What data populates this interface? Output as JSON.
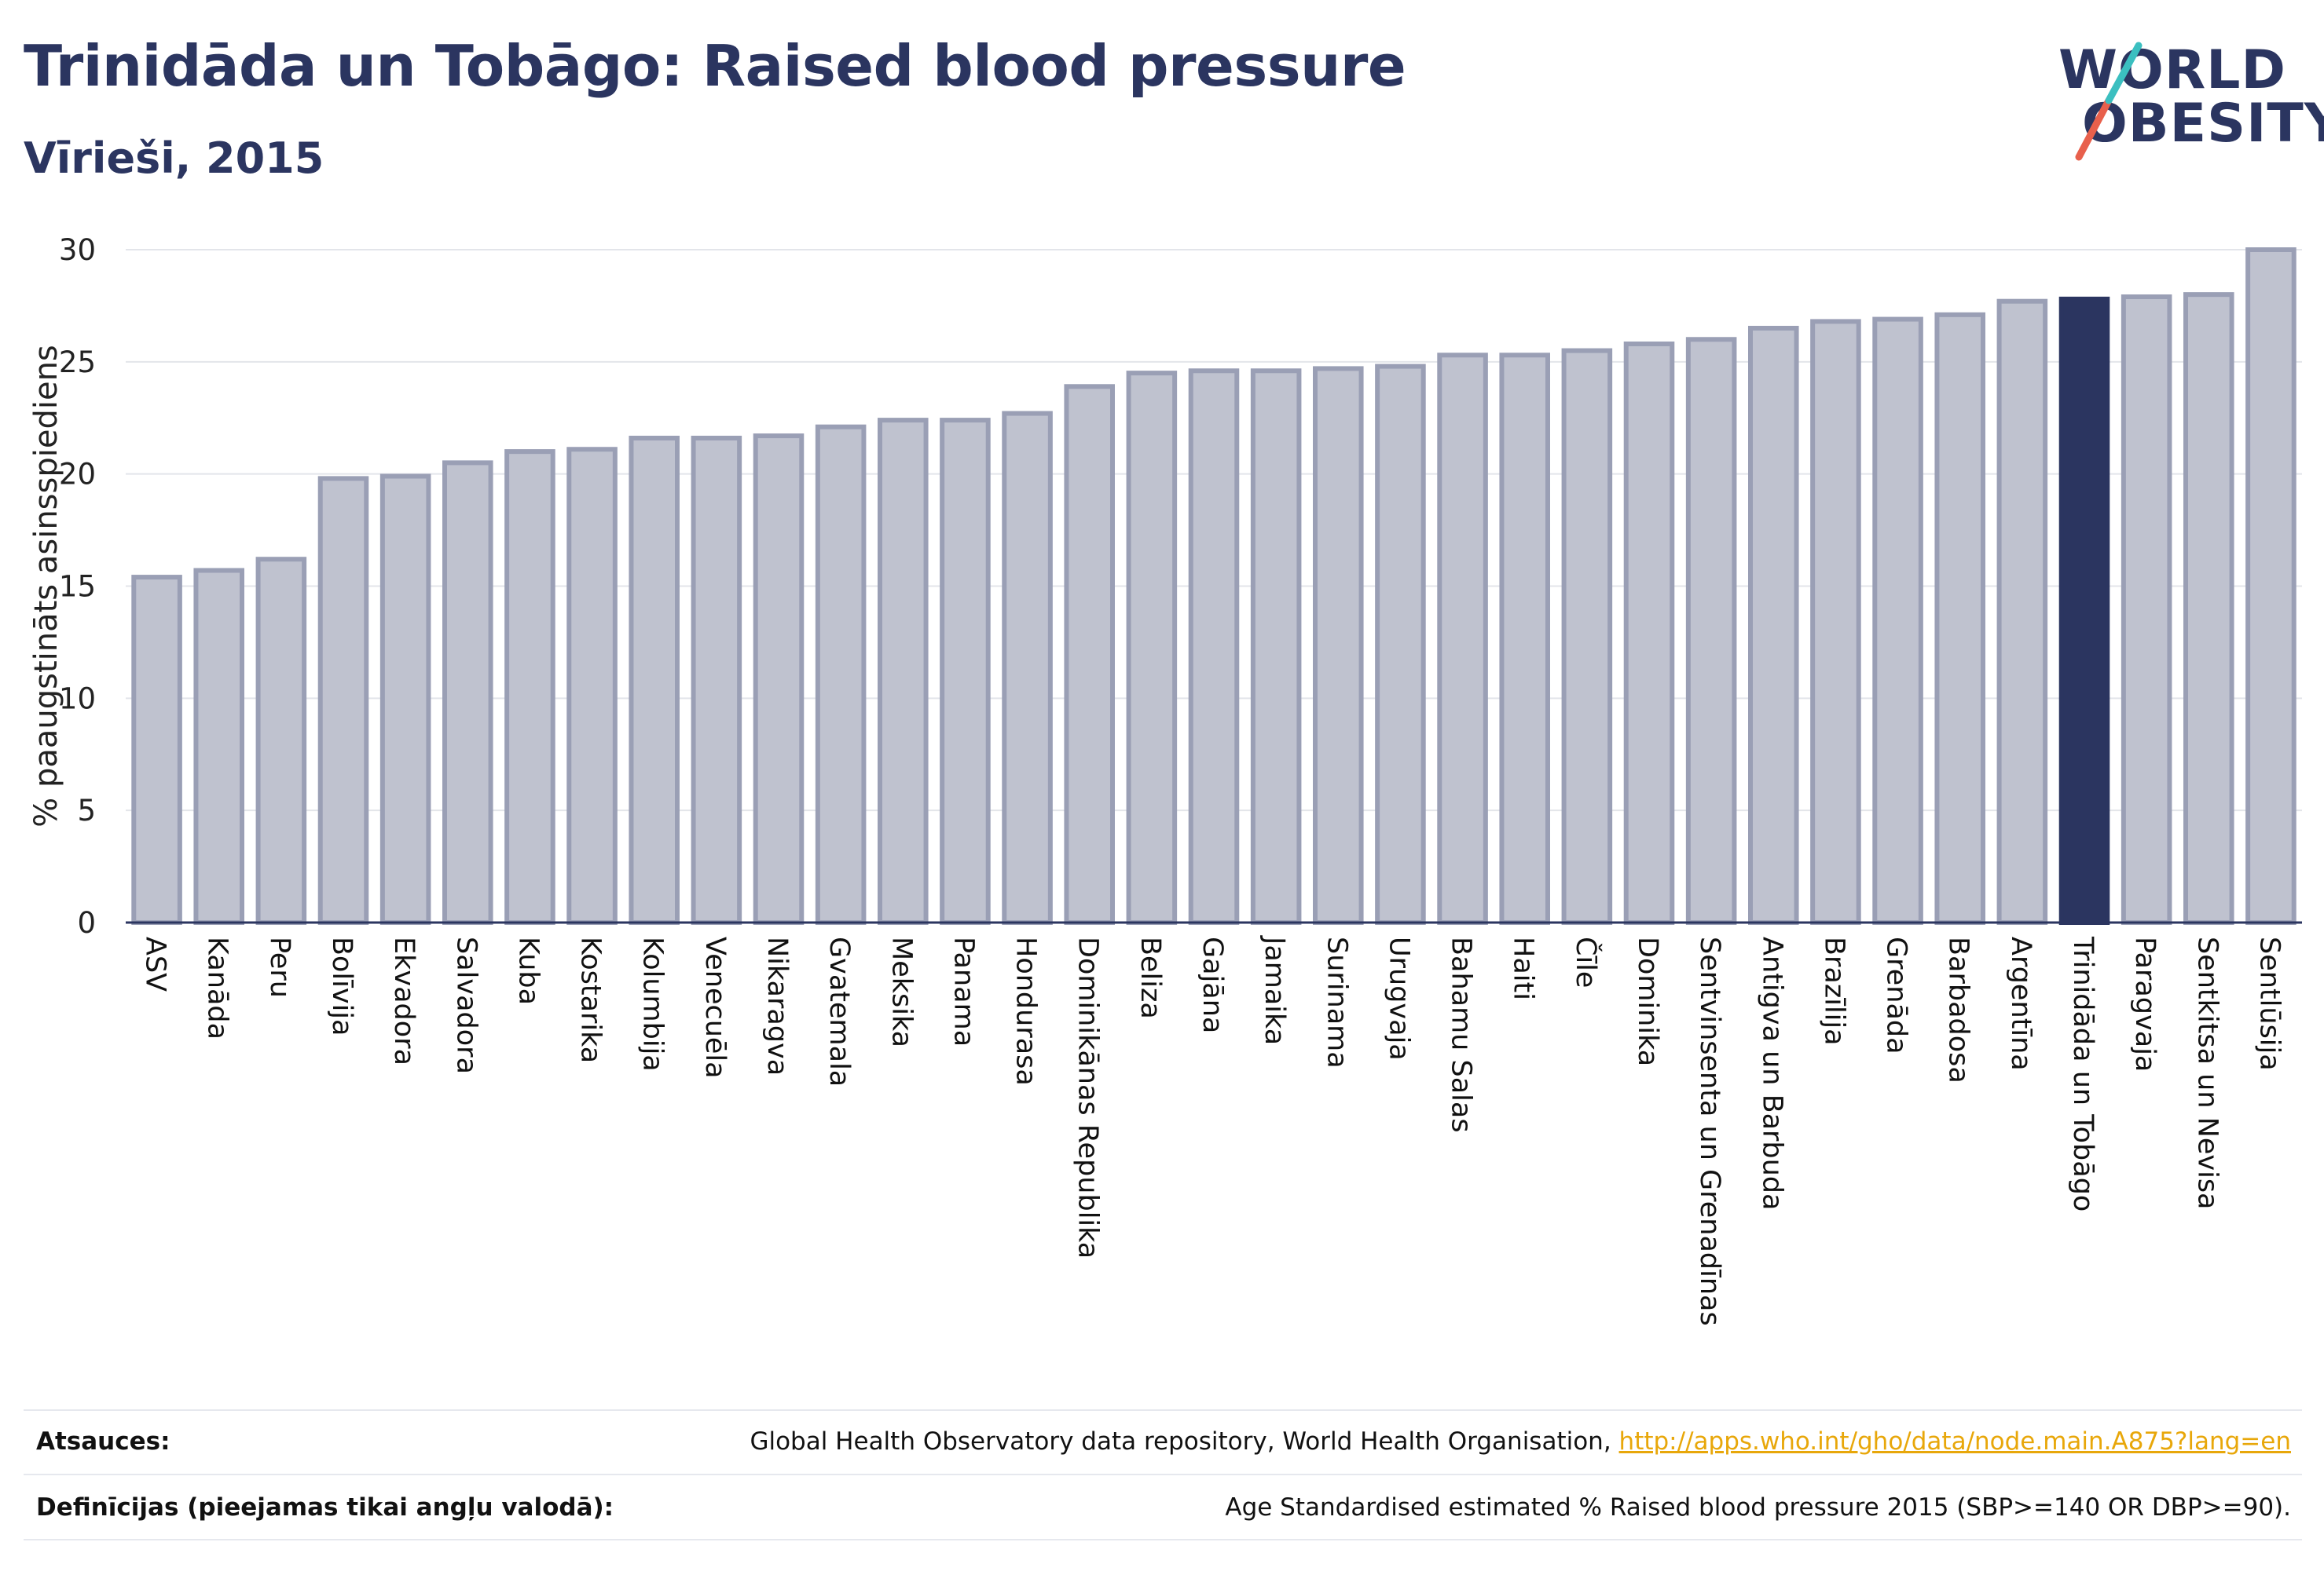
{
  "header": {
    "title": "Trinidāda un Tobāgo: Raised blood pressure",
    "subtitle": "Vīrieši, 2015"
  },
  "logo": {
    "line1": "WORLD",
    "line2": "OBESITY",
    "text_color": "#2b3560",
    "slash_colors": [
      "#e8604c",
      "#3bbfc0"
    ]
  },
  "colors": {
    "bar_default_fill": "#bfc2cf",
    "bar_default_stroke": "#9a9fb5",
    "bar_highlight": "#2b3560",
    "grid": "#e3e5ea",
    "axis": "#2b3560",
    "link": "#e8a70a"
  },
  "chart_data": {
    "type": "bar",
    "ylabel": "% paaugstināts asinsspiediens",
    "ylim": [
      0,
      30
    ],
    "yticks": [
      0,
      5,
      10,
      15,
      20,
      25,
      30
    ],
    "grid": true,
    "highlight": "Trinidāda un Tobāgo",
    "categories": [
      "ASV",
      "Kanāda",
      "Peru",
      "Bolīvija",
      "Ekvadora",
      "Salvadora",
      "Kuba",
      "Kostarika",
      "Kolumbija",
      "Venecuēla",
      "Nikaragva",
      "Gvatemala",
      "Meksika",
      "Panama",
      "Hondurasa",
      "Dominikānas Republika",
      "Beliza",
      "Gajāna",
      "Jamaika",
      "Surinama",
      "Urugvaja",
      "Bahamu Salas",
      "Haiti",
      "Čīle",
      "Dominika",
      "Sentvinsenta un Grenadīnas",
      "Antigva un Barbuda",
      "Brazīlija",
      "Grenāda",
      "Barbadosa",
      "Argentīna",
      "Trinidāda un Tobāgo",
      "Paragvaja",
      "Sentkitsa un Nevisa",
      "Sentlūsija"
    ],
    "values": [
      15.4,
      15.7,
      16.2,
      19.8,
      19.9,
      20.5,
      21.0,
      21.1,
      21.6,
      21.6,
      21.7,
      22.1,
      22.4,
      22.4,
      22.7,
      23.9,
      24.5,
      24.6,
      24.6,
      24.7,
      24.8,
      25.3,
      25.3,
      25.5,
      25.8,
      26.0,
      26.5,
      26.8,
      26.9,
      27.1,
      27.7,
      27.8,
      27.9,
      28.0,
      30.0
    ]
  },
  "footer": {
    "sources_label": "Atsauces:",
    "sources_text": "Global Health Observatory data repository, World Health Organisation, ",
    "sources_link": "http://apps.who.int/gho/data/node.main.A875?lang=en",
    "definitions_label": "Definīcijas (pieejamas tikai angļu valodā):",
    "definitions_text": "Age Standardised estimated % Raised blood pressure 2015 (SBP>=140 OR DBP>=90)."
  }
}
